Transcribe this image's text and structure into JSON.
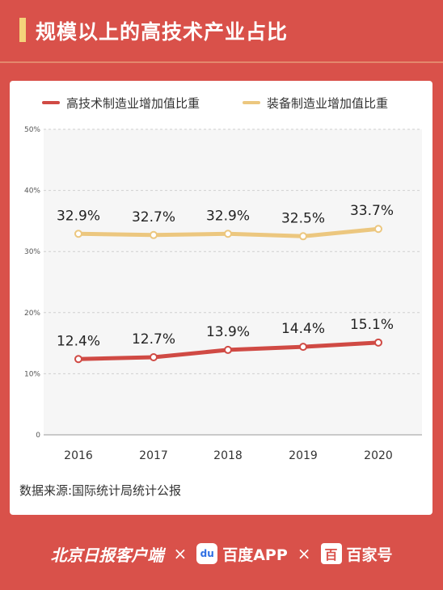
{
  "header": {
    "title": "规模以上的高技术产业占比"
  },
  "source_note": "数据来源:国际统计局统计公报",
  "footer": {
    "brand1": "北京日报客户端",
    "sep1": "×",
    "brand2_icon": "du",
    "brand2": "百度APP",
    "sep2": "×",
    "brand3_icon": "百",
    "brand3": "百家号"
  },
  "colors": {
    "background": "#d9514a",
    "series1": "#d04a44",
    "series2": "#ecc77f",
    "title_accent": "#f4d27a"
  },
  "chart_data": {
    "type": "line",
    "x": [
      "2016",
      "2017",
      "2018",
      "2019",
      "2020"
    ],
    "series": [
      {
        "name": "高技术制造业增加值比重",
        "values": [
          12.4,
          12.7,
          13.9,
          14.4,
          15.1
        ],
        "labels": [
          "12.4%",
          "12.7%",
          "13.9%",
          "14.4%",
          "15.1%"
        ],
        "color": "#d04a44"
      },
      {
        "name": "装备制造业增加值比重",
        "values": [
          32.9,
          32.7,
          32.9,
          32.5,
          33.7
        ],
        "labels": [
          "32.9%",
          "32.7%",
          "32.9%",
          "32.5%",
          "33.7%"
        ],
        "color": "#ecc77f"
      }
    ],
    "yticks": [
      "0",
      "10%",
      "20%",
      "30%",
      "40%",
      "50%"
    ],
    "ylim": [
      0,
      50
    ],
    "grid": true,
    "legend": "top"
  }
}
